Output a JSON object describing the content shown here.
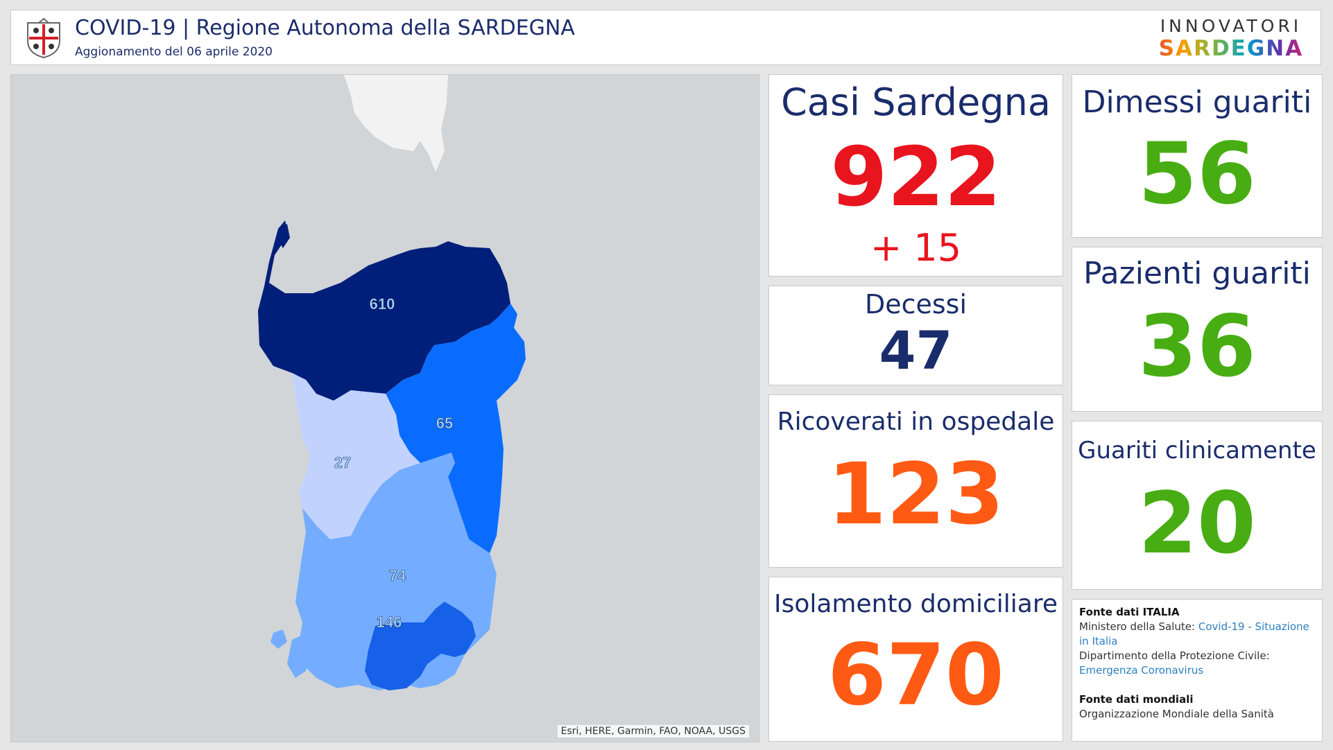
{
  "header": {
    "title": "COVID-19 | Regione Autonoma della SARDEGNA",
    "subtitle": "Aggionamento del 06 aprile 2020",
    "logo_top": "INNOVATORI",
    "logo_bottom": "SARDEGNA"
  },
  "map": {
    "labels": [
      "610",
      "65",
      "27",
      "74",
      "146"
    ],
    "attribution": "Esri, HERE, Garmin, FAO, NOAA, USGS"
  },
  "stats": {
    "casi": {
      "label": "Casi Sardegna",
      "value": "922",
      "delta": "+ 15"
    },
    "decessi": {
      "label": "Decessi",
      "value": "47"
    },
    "ricoverati": {
      "label": "Ricoverati in ospedale",
      "value": "123"
    },
    "isolamento": {
      "label": "Isolamento domiciliare",
      "value": "670"
    },
    "dimessi": {
      "label": "Dimessi guariti",
      "value": "56"
    },
    "pazienti": {
      "label": "Pazienti guariti",
      "value": "36"
    },
    "clinicamente": {
      "label": "Guariti clinicamente",
      "value": "20"
    }
  },
  "sources": {
    "italia_head": "Fonte dati ITALIA",
    "ministero": "Ministero della Salute:",
    "ministero_link": "Covid-19 - Situazione in Italia",
    "protezione": "Dipartimento della Protezione Civile:",
    "protezione_link": "Emergenza Coronavirus",
    "mondiali_head": "Fonte dati mondiali",
    "oms": "Organizzazione Mondiale della Sanità"
  },
  "colors": {
    "red": "#e8141e",
    "orange": "#ff5a14",
    "green": "#47ad13",
    "navy": "#1a2c6b"
  }
}
